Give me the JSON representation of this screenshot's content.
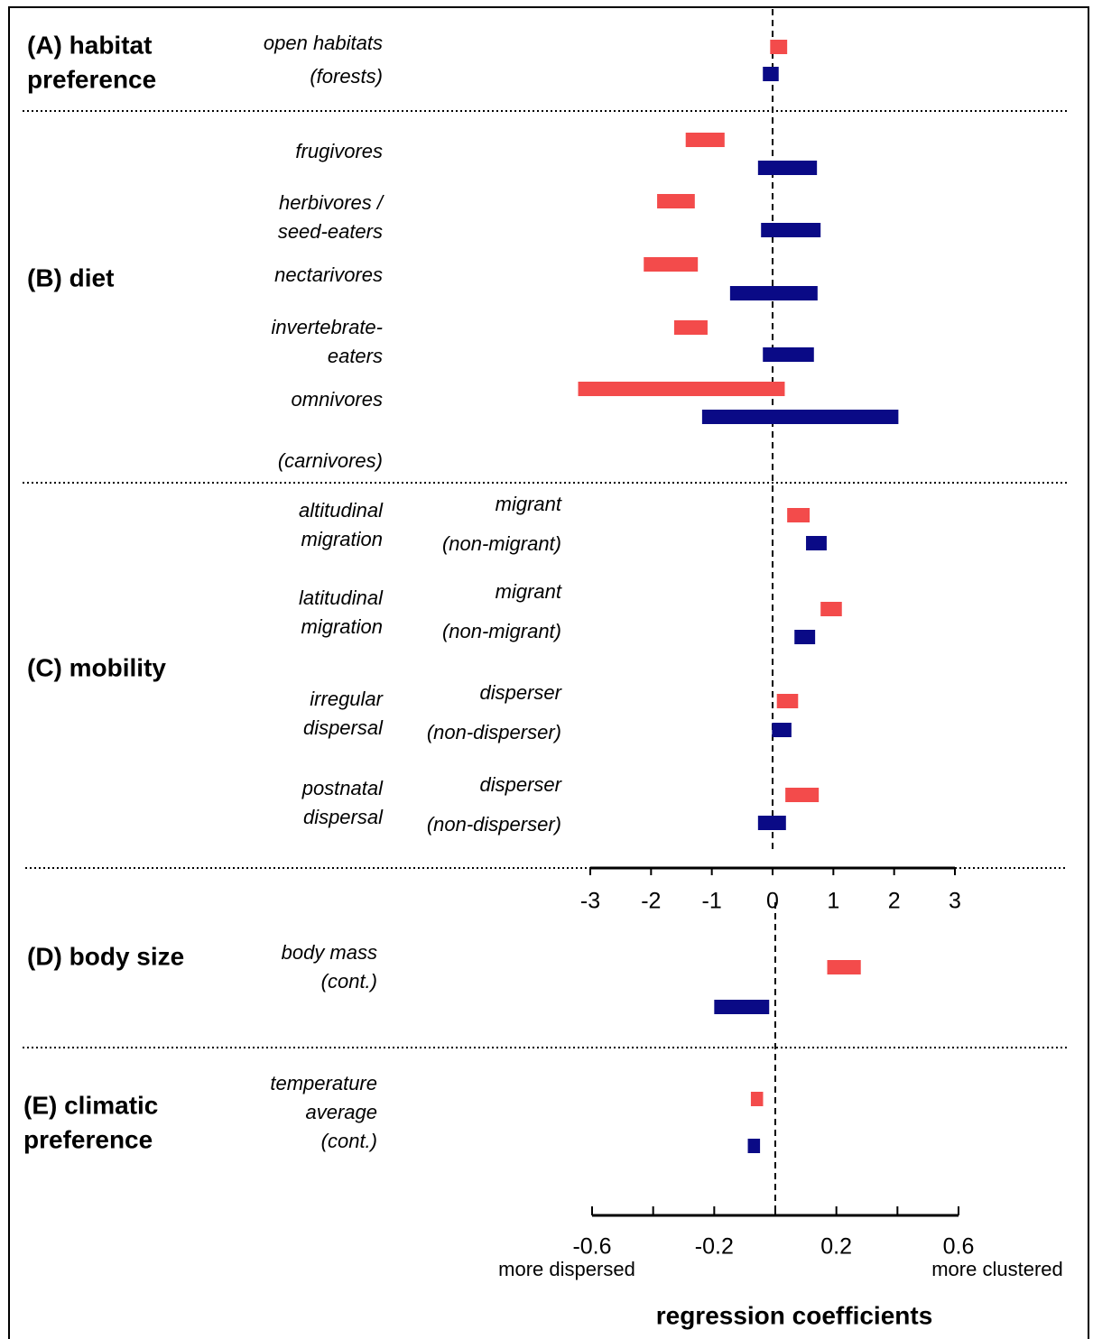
{
  "chart_data": [
    {
      "type": "range",
      "xlim": [
        -3,
        3
      ],
      "xticks": [
        -3,
        -2,
        -1,
        0,
        1,
        2,
        3
      ],
      "colors": [
        "#f34b4b",
        "#0a0a86"
      ],
      "sections": [
        {
          "label": [
            "(A) habitat",
            "preference"
          ],
          "rows": [
            {
              "label": [
                "open habitats"
              ],
              "series": [
                {
                  "color": "#f34b4b",
                  "values": [
                    -0.04,
                    0.24
                  ]
                }
              ]
            },
            {
              "label": [
                "(forests)"
              ],
              "series": [
                {
                  "color": "#0a0a86",
                  "values": [
                    -0.16,
                    0.1
                  ]
                }
              ]
            }
          ]
        },
        {
          "label": [
            "(B) diet"
          ],
          "rows": [
            {
              "label": [
                "frugivores"
              ],
              "series": [
                {
                  "color": "#f34b4b",
                  "values": [
                    -1.43,
                    -0.79
                  ]
                },
                {
                  "color": "#0a0a86",
                  "values": [
                    -0.24,
                    0.73
                  ]
                }
              ]
            },
            {
              "label": [
                "herbivores /",
                "seed-eaters"
              ],
              "series": [
                {
                  "color": "#f34b4b",
                  "values": [
                    -1.9,
                    -1.28
                  ]
                },
                {
                  "color": "#0a0a86",
                  "values": [
                    -0.19,
                    0.79
                  ]
                }
              ]
            },
            {
              "label": [
                "nectarivores"
              ],
              "series": [
                {
                  "color": "#f34b4b",
                  "values": [
                    -2.12,
                    -1.23
                  ]
                },
                {
                  "color": "#0a0a86",
                  "values": [
                    -0.7,
                    0.74
                  ]
                }
              ]
            },
            {
              "label": [
                "invertebrate-",
                "eaters"
              ],
              "series": [
                {
                  "color": "#f34b4b",
                  "values": [
                    -1.62,
                    -1.07
                  ]
                },
                {
                  "color": "#0a0a86",
                  "values": [
                    -0.16,
                    0.68
                  ]
                }
              ]
            },
            {
              "label": [
                "omnivores"
              ],
              "series": [
                {
                  "color": "#f34b4b",
                  "values": [
                    -3.2,
                    0.2
                  ]
                },
                {
                  "color": "#0a0a86",
                  "values": [
                    -1.16,
                    2.07
                  ]
                }
              ]
            },
            {
              "label": [
                "(carnivores)"
              ],
              "series": []
            }
          ]
        },
        {
          "label": [
            "(C) mobility"
          ],
          "rows": [
            {
              "label": [
                "altitudinal",
                "migration"
              ],
              "series": [
                {
                  "name": "migrant",
                  "color": "#f34b4b",
                  "values": [
                    0.24,
                    0.61
                  ]
                },
                {
                  "name": "(non-migrant)",
                  "color": "#0a0a86",
                  "values": [
                    0.55,
                    0.89
                  ]
                }
              ]
            },
            {
              "label": [
                "latitudinal",
                "migration"
              ],
              "series": [
                {
                  "name": "migrant",
                  "color": "#f34b4b",
                  "values": [
                    0.79,
                    1.14
                  ]
                },
                {
                  "name": "(non-migrant)",
                  "color": "#0a0a86",
                  "values": [
                    0.36,
                    0.7
                  ]
                }
              ]
            },
            {
              "label": [
                "irregular",
                "dispersal"
              ],
              "series": [
                {
                  "name": "disperser",
                  "color": "#f34b4b",
                  "values": [
                    0.07,
                    0.42
                  ]
                },
                {
                  "name": "(non-disperser)",
                  "color": "#0a0a86",
                  "values": [
                    -0.01,
                    0.31
                  ]
                }
              ]
            },
            {
              "label": [
                "postnatal",
                "dispersal"
              ],
              "series": [
                {
                  "name": "disperser",
                  "color": "#f34b4b",
                  "values": [
                    0.21,
                    0.76
                  ]
                },
                {
                  "name": "(non-disperser)",
                  "color": "#0a0a86",
                  "values": [
                    -0.24,
                    0.22
                  ]
                }
              ]
            }
          ]
        }
      ]
    },
    {
      "type": "range",
      "xlim": [
        -0.6,
        0.6
      ],
      "xticks": [
        -0.6,
        -0.2,
        0.2,
        0.6
      ],
      "xminor": [
        -0.4,
        0,
        0.4
      ],
      "xlabel": "regression coefficients",
      "annotations": [
        "more dispersed",
        "more clustered"
      ],
      "sections": [
        {
          "label": [
            "(D) body size"
          ],
          "rows": [
            {
              "label": [
                "body mass",
                "(cont.)"
              ],
              "series": [
                {
                  "color": "#f34b4b",
                  "values": [
                    0.17,
                    0.28
                  ]
                },
                {
                  "color": "#0a0a86",
                  "values": [
                    -0.2,
                    -0.02
                  ]
                }
              ]
            }
          ]
        },
        {
          "label": [
            "(E) climatic",
            "preference"
          ],
          "rows": [
            {
              "label": [
                "temperature",
                "average",
                "(cont.)"
              ],
              "series": [
                {
                  "color": "#f34b4b",
                  "values": [
                    -0.08,
                    -0.04
                  ]
                },
                {
                  "color": "#0a0a86",
                  "values": [
                    -0.09,
                    -0.05
                  ]
                }
              ]
            }
          ]
        }
      ]
    }
  ]
}
